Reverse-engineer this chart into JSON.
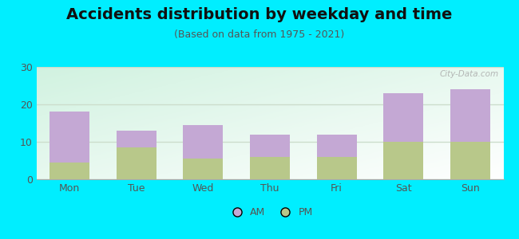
{
  "title": "Accidents distribution by weekday and time",
  "subtitle": "(Based on data from 1975 - 2021)",
  "categories": [
    "Mon",
    "Tue",
    "Wed",
    "Thu",
    "Fri",
    "Sat",
    "Sun"
  ],
  "pm_values": [
    4.5,
    8.5,
    5.5,
    6.0,
    6.0,
    10.0,
    10.0
  ],
  "am_values": [
    13.5,
    4.5,
    9.0,
    6.0,
    6.0,
    13.0,
    14.0
  ],
  "am_color": "#c4a8d4",
  "pm_color": "#b8c88a",
  "background_color": "#00eeff",
  "ylim": [
    0,
    30
  ],
  "yticks": [
    0,
    10,
    20,
    30
  ],
  "watermark": "City-Data.com",
  "legend_am": "AM",
  "legend_pm": "PM",
  "title_fontsize": 14,
  "subtitle_fontsize": 9,
  "bar_width": 0.6,
  "grid_color": "#ccddcc",
  "tick_color": "#555555"
}
